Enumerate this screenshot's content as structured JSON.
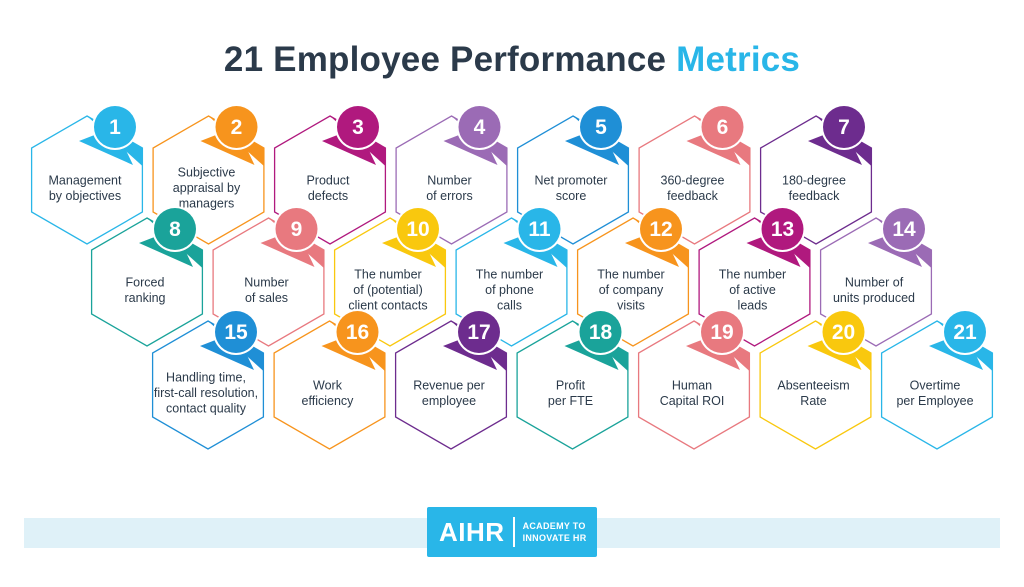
{
  "title": {
    "main": "21 Employee Performance ",
    "accent": "Metrics"
  },
  "metrics": [
    {
      "num": "1",
      "lines": [
        "Management",
        "by objectives"
      ],
      "color": "#29b6e8"
    },
    {
      "num": "2",
      "lines": [
        "Subjective",
        "appraisal by",
        "managers"
      ],
      "color": "#f7941d"
    },
    {
      "num": "3",
      "lines": [
        "Product",
        "defects"
      ],
      "color": "#b0197e"
    },
    {
      "num": "4",
      "lines": [
        "Number",
        "of errors"
      ],
      "color": "#9b6bb5"
    },
    {
      "num": "5",
      "lines": [
        "Net promoter",
        "score"
      ],
      "color": "#1f8fd6"
    },
    {
      "num": "6",
      "lines": [
        "360-degree",
        "feedback"
      ],
      "color": "#e8797f"
    },
    {
      "num": "7",
      "lines": [
        "180-degree",
        "feedback"
      ],
      "color": "#6d2c8e"
    },
    {
      "num": "8",
      "lines": [
        "Forced",
        "ranking"
      ],
      "color": "#1aa39a"
    },
    {
      "num": "9",
      "lines": [
        "Number",
        "of sales"
      ],
      "color": "#e8797f"
    },
    {
      "num": "10",
      "lines": [
        "The number",
        "of (potential)",
        "client contacts"
      ],
      "color": "#f9c80e"
    },
    {
      "num": "11",
      "lines": [
        "The number",
        "of phone",
        "calls"
      ],
      "color": "#29b6e8"
    },
    {
      "num": "12",
      "lines": [
        "The number",
        "of company",
        "visits"
      ],
      "color": "#f7941d"
    },
    {
      "num": "13",
      "lines": [
        "The number",
        "of active",
        "leads"
      ],
      "color": "#b0197e"
    },
    {
      "num": "14",
      "lines": [
        "Number of",
        "units produced"
      ],
      "color": "#9b6bb5"
    },
    {
      "num": "15",
      "lines": [
        "Handling time,",
        "first-call resolution,",
        "contact quality"
      ],
      "color": "#1f8fd6"
    },
    {
      "num": "16",
      "lines": [
        "Work",
        "efficiency"
      ],
      "color": "#f7941d"
    },
    {
      "num": "17",
      "lines": [
        "Revenue per",
        "employee"
      ],
      "color": "#6d2c8e"
    },
    {
      "num": "18",
      "lines": [
        "Profit",
        "per FTE"
      ],
      "color": "#1aa39a"
    },
    {
      "num": "19",
      "lines": [
        "Human",
        "Capital ROI"
      ],
      "color": "#e8797f"
    },
    {
      "num": "20",
      "lines": [
        "Absenteeism",
        "Rate"
      ],
      "color": "#f9c80e"
    },
    {
      "num": "21",
      "lines": [
        "Overtime",
        "per Employee"
      ],
      "color": "#29b6e8"
    }
  ],
  "logo": {
    "word": "AIHR",
    "tag_line1": "ACADEMY TO",
    "tag_line2": "INNOVATE HR",
    "color": "#29b6e8"
  },
  "footer_band_color": "#dff1f8",
  "title_color": "#2b3a4a"
}
